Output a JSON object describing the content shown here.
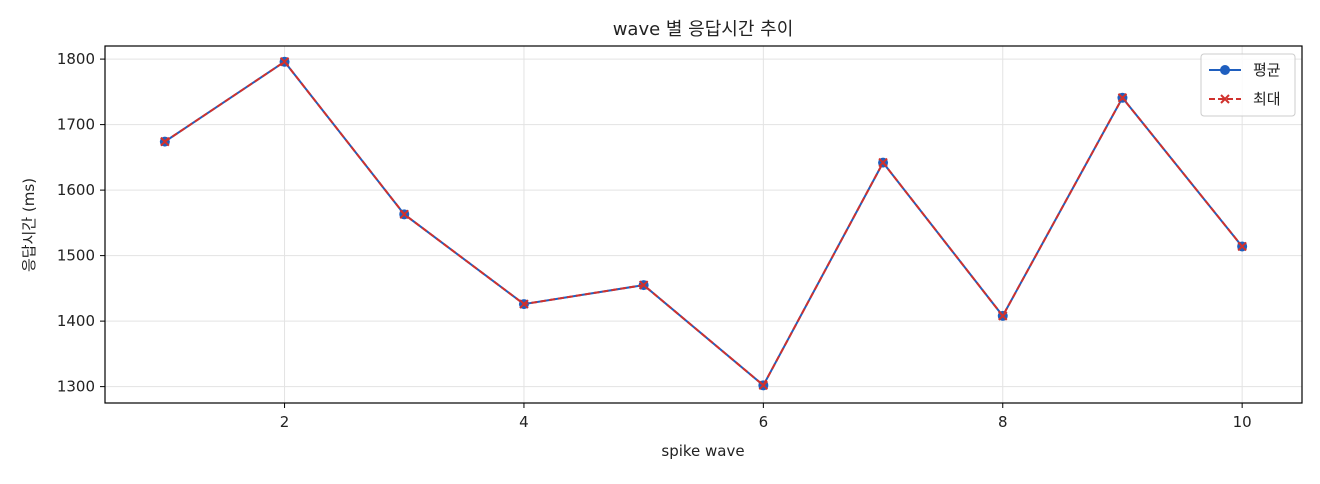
{
  "chart_data": {
    "type": "line",
    "title": "wave 별 응답시간 추이",
    "xlabel": "spike wave",
    "ylabel": "응답시간 (ms)",
    "x": [
      1,
      2,
      3,
      4,
      5,
      6,
      7,
      8,
      9,
      10
    ],
    "x_ticks": [
      2,
      4,
      6,
      8,
      10
    ],
    "y_ticks": [
      1300,
      1400,
      1500,
      1600,
      1700,
      1800
    ],
    "xlim": [
      0.5,
      10.5
    ],
    "ylim": [
      1275,
      1820
    ],
    "grid": true,
    "legend_position": "top-right",
    "series": [
      {
        "name": "평균",
        "color": "#1f5fbf",
        "marker": "circle",
        "line_style": "solid",
        "values": [
          1674,
          1796,
          1563,
          1426,
          1455,
          1302,
          1642,
          1408,
          1741,
          1514
        ]
      },
      {
        "name": "최대",
        "color": "#d0312d",
        "marker": "x",
        "line_style": "dashed",
        "values": [
          1674,
          1796,
          1563,
          1426,
          1455,
          1302,
          1642,
          1408,
          1741,
          1514
        ]
      }
    ]
  }
}
